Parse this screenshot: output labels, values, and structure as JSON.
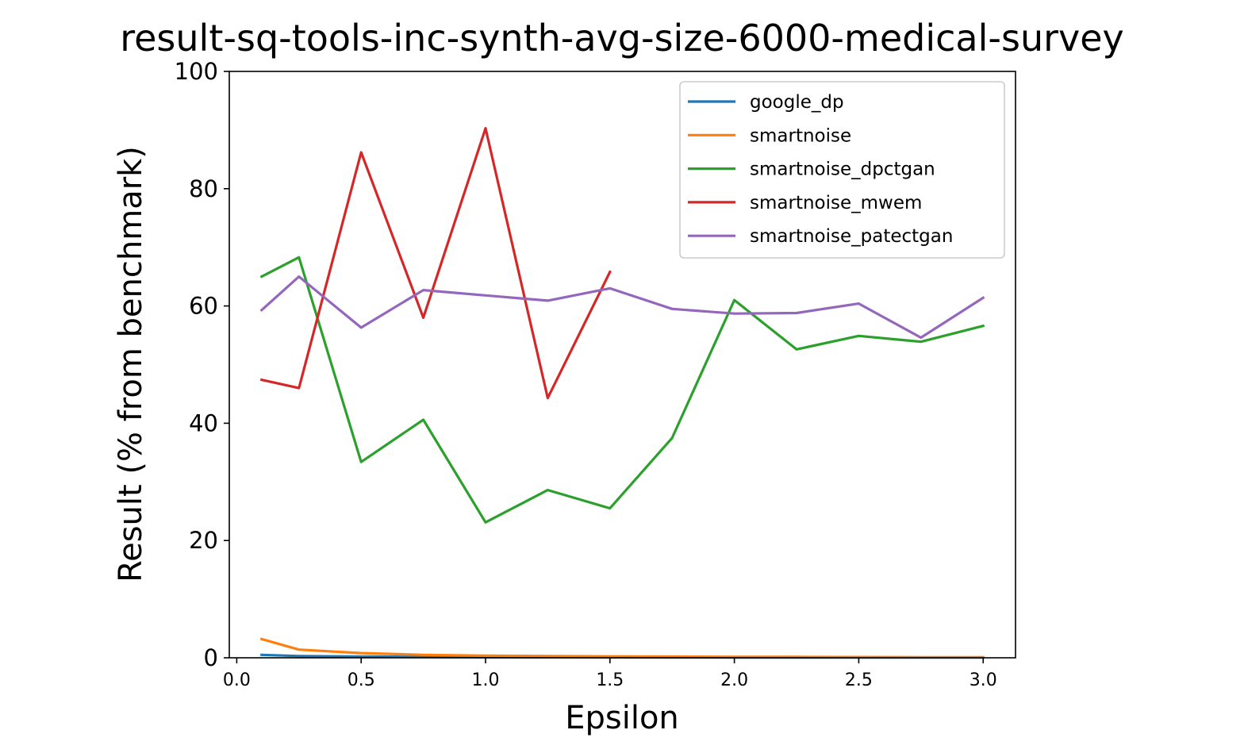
{
  "chart_data": {
    "type": "line",
    "title": "result-sq-tools-inc-synth-avg-size-6000-medical-survey",
    "xlabel": "Epsilon",
    "ylabel": "Result (% from benchmark)",
    "xlim": [
      -0.03,
      3.13
    ],
    "ylim": [
      0,
      100
    ],
    "xticks": [
      "0.0",
      "0.5",
      "1.0",
      "1.5",
      "2.0",
      "2.5",
      "3.0"
    ],
    "yticks": [
      "0",
      "20",
      "40",
      "60",
      "80",
      "100"
    ],
    "grid": false,
    "legend_position": "top-right",
    "series": [
      {
        "name": "google_dp",
        "color": "#1f77b4",
        "x": [
          0.1,
          0.25,
          0.5,
          0.75,
          1.0,
          1.25,
          1.5,
          1.75,
          2.0,
          2.25,
          2.5,
          2.75,
          3.0
        ],
        "values": [
          0.5,
          0.3,
          0.2,
          0.15,
          0.1,
          0.1,
          0.08,
          0.07,
          0.06,
          0.05,
          0.05,
          0.04,
          0.04
        ]
      },
      {
        "name": "smartnoise",
        "color": "#ff7f0e",
        "x": [
          0.1,
          0.25,
          0.5,
          0.75,
          1.0,
          1.25,
          1.5,
          1.75,
          2.0,
          2.25,
          2.5,
          2.75,
          3.0
        ],
        "values": [
          3.2,
          1.4,
          0.8,
          0.5,
          0.35,
          0.3,
          0.25,
          0.2,
          0.15,
          0.15,
          0.12,
          0.1,
          0.1
        ]
      },
      {
        "name": "smartnoise_dpctgan",
        "color": "#2ca02c",
        "x": [
          0.1,
          0.25,
          0.5,
          0.75,
          1.0,
          1.25,
          1.5,
          1.75,
          2.0,
          2.25,
          2.5,
          2.75,
          3.0
        ],
        "values": [
          65.0,
          68.3,
          33.4,
          40.6,
          23.1,
          28.6,
          25.5,
          37.5,
          61.0,
          52.6,
          54.9,
          53.9,
          56.6
        ]
      },
      {
        "name": "smartnoise_mwem",
        "color": "#d62728",
        "x": [
          0.1,
          0.25,
          0.5,
          0.75,
          1.0,
          1.25,
          1.5
        ],
        "values": [
          47.4,
          46.0,
          86.2,
          58.0,
          90.3,
          44.3,
          65.8
        ]
      },
      {
        "name": "smartnoise_patectgan",
        "color": "#9467bd",
        "x": [
          0.1,
          0.25,
          0.5,
          0.75,
          1.0,
          1.25,
          1.5,
          1.75,
          2.0,
          2.25,
          2.5,
          2.75,
          3.0
        ],
        "values": [
          59.3,
          65.0,
          56.3,
          62.7,
          61.8,
          60.9,
          63.0,
          59.5,
          58.7,
          58.8,
          60.4,
          54.6,
          61.4
        ]
      }
    ]
  }
}
